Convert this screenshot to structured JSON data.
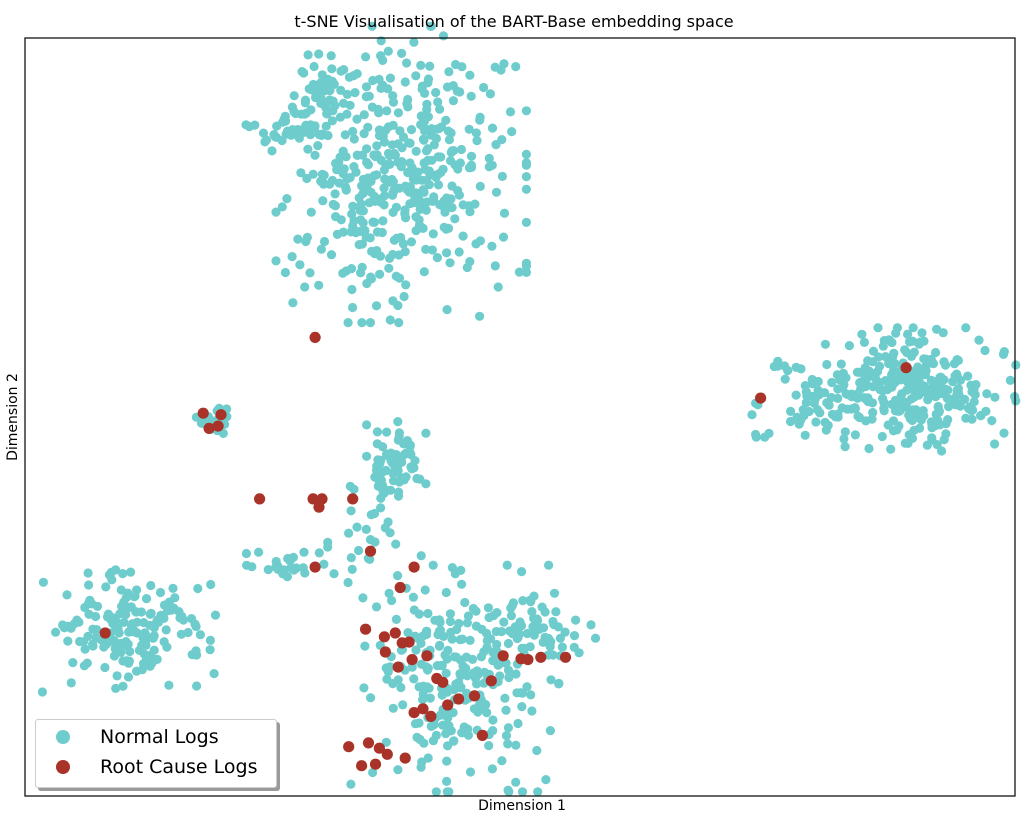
{
  "chart_data": {
    "type": "scatter",
    "title": "t-SNE Visualisation of the BART-Base embedding space",
    "xlabel": "Dimension 1",
    "ylabel": "Dimension 2",
    "xlim": [
      0,
      100
    ],
    "ylim": [
      0,
      100
    ],
    "grid": false,
    "ticks": false,
    "legend_position": "lower-left",
    "series": [
      {
        "name": "Normal Logs",
        "color": "#6ecdcc",
        "clusters": [
          {
            "cx": 38.0,
            "cy": 82.0,
            "sx": 5.5,
            "sy": 8.5,
            "n": 430
          },
          {
            "cx": 30.5,
            "cy": 92.5,
            "sx": 1.6,
            "sy": 1.8,
            "n": 45
          },
          {
            "cx": 26.0,
            "cy": 88.0,
            "sx": 1.6,
            "sy": 1.5,
            "n": 35
          },
          {
            "cx": 89.5,
            "cy": 53.5,
            "sx": 4.6,
            "sy": 3.6,
            "n": 300
          },
          {
            "cx": 80.0,
            "cy": 51.0,
            "sx": 2.3,
            "sy": 1.6,
            "n": 30
          },
          {
            "cx": 77.5,
            "cy": 56.0,
            "sx": 1.2,
            "sy": 0.7,
            "n": 8
          },
          {
            "cx": 74.5,
            "cy": 47.3,
            "sx": 0.6,
            "sy": 0.4,
            "n": 4
          },
          {
            "cx": 74.0,
            "cy": 51.5,
            "sx": 0.4,
            "sy": 0.8,
            "n": 3
          },
          {
            "cx": 18.7,
            "cy": 49.5,
            "sx": 1.0,
            "sy": 0.9,
            "n": 22
          },
          {
            "cx": 37.5,
            "cy": 43.0,
            "sx": 1.3,
            "sy": 3.6,
            "n": 75
          },
          {
            "cx": 26.5,
            "cy": 30.5,
            "sx": 2.3,
            "sy": 1.4,
            "n": 24
          },
          {
            "cx": 34.5,
            "cy": 33.5,
            "sx": 2.4,
            "sy": 3.2,
            "n": 22
          },
          {
            "cx": 10.5,
            "cy": 22.0,
            "sx": 3.8,
            "sy": 3.6,
            "n": 175
          },
          {
            "cx": 43.5,
            "cy": 15.5,
            "sx": 4.6,
            "sy": 6.5,
            "n": 250
          },
          {
            "cx": 52.0,
            "cy": 22.0,
            "sx": 2.8,
            "sy": 2.0,
            "n": 55
          }
        ]
      },
      {
        "name": "Root Cause Logs",
        "color": "#a93328",
        "points": [
          [
            29.3,
            60.5
          ],
          [
            89.0,
            56.5
          ],
          [
            74.3,
            52.5
          ],
          [
            18.0,
            50.5
          ],
          [
            19.8,
            50.3
          ],
          [
            18.6,
            48.5
          ],
          [
            19.5,
            48.8
          ],
          [
            23.7,
            39.2
          ],
          [
            29.1,
            39.2
          ],
          [
            30.0,
            39.2
          ],
          [
            33.1,
            39.2
          ],
          [
            29.7,
            38.1
          ],
          [
            34.9,
            32.3
          ],
          [
            29.3,
            30.2
          ],
          [
            39.3,
            30.2
          ],
          [
            37.9,
            27.5
          ],
          [
            8.1,
            21.5
          ],
          [
            34.4,
            22.0
          ],
          [
            36.3,
            21.0
          ],
          [
            37.4,
            21.5
          ],
          [
            38.1,
            20.2
          ],
          [
            38.8,
            20.3
          ],
          [
            36.4,
            19.0
          ],
          [
            39.1,
            18.0
          ],
          [
            40.6,
            18.5
          ],
          [
            37.7,
            17.0
          ],
          [
            41.6,
            15.5
          ],
          [
            42.2,
            15.0
          ],
          [
            48.3,
            18.5
          ],
          [
            50.1,
            18.1
          ],
          [
            50.8,
            18.0
          ],
          [
            52.1,
            18.3
          ],
          [
            54.6,
            18.3
          ],
          [
            47.1,
            15.2
          ],
          [
            45.4,
            13.2
          ],
          [
            42.7,
            12.0
          ],
          [
            43.8,
            12.8
          ],
          [
            40.2,
            11.5
          ],
          [
            39.3,
            11.0
          ],
          [
            41.0,
            10.5
          ],
          [
            46.2,
            8.0
          ],
          [
            32.7,
            6.5
          ],
          [
            34.7,
            7.0
          ],
          [
            35.8,
            6.3
          ],
          [
            36.6,
            5.5
          ],
          [
            38.4,
            5.0
          ],
          [
            34.0,
            4.0
          ],
          [
            35.4,
            4.2
          ]
        ]
      }
    ]
  }
}
